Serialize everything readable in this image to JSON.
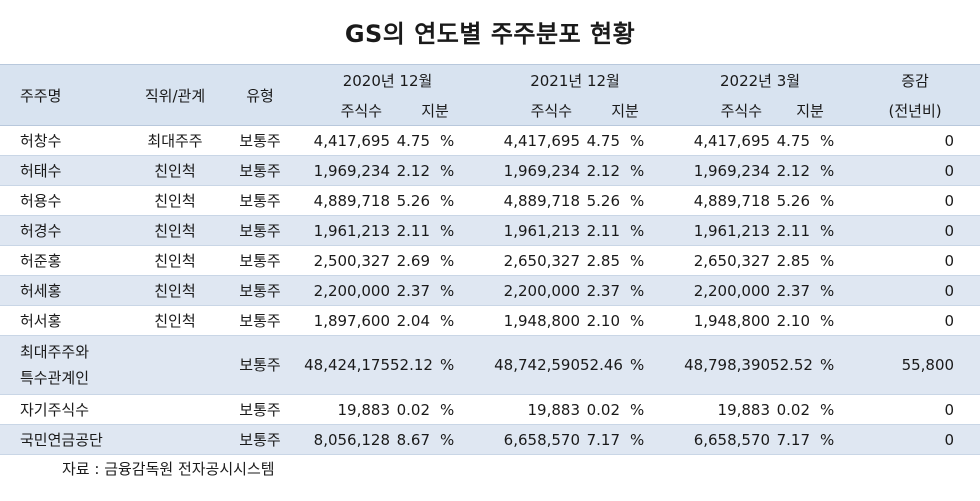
{
  "title": "GS의 연도별 주주분포 현황",
  "header": {
    "name": "주주명",
    "position": "직위/관계",
    "type": "유형",
    "period1": "2020년 12월",
    "period2": "2021년 12월",
    "period3": "2022년 3월",
    "change": "증감",
    "shares": "주식수",
    "stake": "지분",
    "change_sub": "(전년비)"
  },
  "percent_sign": "%",
  "rows": [
    {
      "name": "허창수",
      "position": "최대주주",
      "type": "보통주",
      "s1": "4,417,695",
      "p1": "4.75",
      "s2": "4,417,695",
      "p2": "4.75",
      "s3": "4,417,695",
      "p3": "4.75",
      "change": "0"
    },
    {
      "name": "허태수",
      "position": "친인척",
      "type": "보통주",
      "s1": "1,969,234",
      "p1": "2.12",
      "s2": "1,969,234",
      "p2": "2.12",
      "s3": "1,969,234",
      "p3": "2.12",
      "change": "0"
    },
    {
      "name": "허용수",
      "position": "친인척",
      "type": "보통주",
      "s1": "4,889,718",
      "p1": "5.26",
      "s2": "4,889,718",
      "p2": "5.26",
      "s3": "4,889,718",
      "p3": "5.26",
      "change": "0"
    },
    {
      "name": "허경수",
      "position": "친인척",
      "type": "보통주",
      "s1": "1,961,213",
      "p1": "2.11",
      "s2": "1,961,213",
      "p2": "2.11",
      "s3": "1,961,213",
      "p3": "2.11",
      "change": "0"
    },
    {
      "name": "허준홍",
      "position": "친인척",
      "type": "보통주",
      "s1": "2,500,327",
      "p1": "2.69",
      "s2": "2,650,327",
      "p2": "2.85",
      "s3": "2,650,327",
      "p3": "2.85",
      "change": "0"
    },
    {
      "name": "허세홍",
      "position": "친인척",
      "type": "보통주",
      "s1": "2,200,000",
      "p1": "2.37",
      "s2": "2,200,000",
      "p2": "2.37",
      "s3": "2,200,000",
      "p3": "2.37",
      "change": "0"
    },
    {
      "name": "허서홍",
      "position": "친인척",
      "type": "보통주",
      "s1": "1,897,600",
      "p1": "2.04",
      "s2": "1,948,800",
      "p2": "2.10",
      "s3": "1,948,800",
      "p3": "2.10",
      "change": "0"
    },
    {
      "name": "최대주주와",
      "name2": "특수관계인",
      "position": "",
      "type": "보통주",
      "s1": "48,424,175",
      "p1": "52.12",
      "s2": "48,742,590",
      "p2": "52.46",
      "s3": "48,798,390",
      "p3": "52.52",
      "change": "55,800"
    },
    {
      "name": "자기주식수",
      "position": "",
      "type": "보통주",
      "s1": "19,883",
      "p1": "0.02",
      "s2": "19,883",
      "p2": "0.02",
      "s3": "19,883",
      "p3": "0.02",
      "change": "0"
    },
    {
      "name": "국민연금공단",
      "position": "",
      "type": "보통주",
      "s1": "8,056,128",
      "p1": "8.67",
      "s2": "6,658,570",
      "p2": "7.17",
      "s3": "6,658,570",
      "p3": "7.17",
      "change": "0"
    }
  ],
  "source": "자료 : 금융감독원 전자공시시스템"
}
